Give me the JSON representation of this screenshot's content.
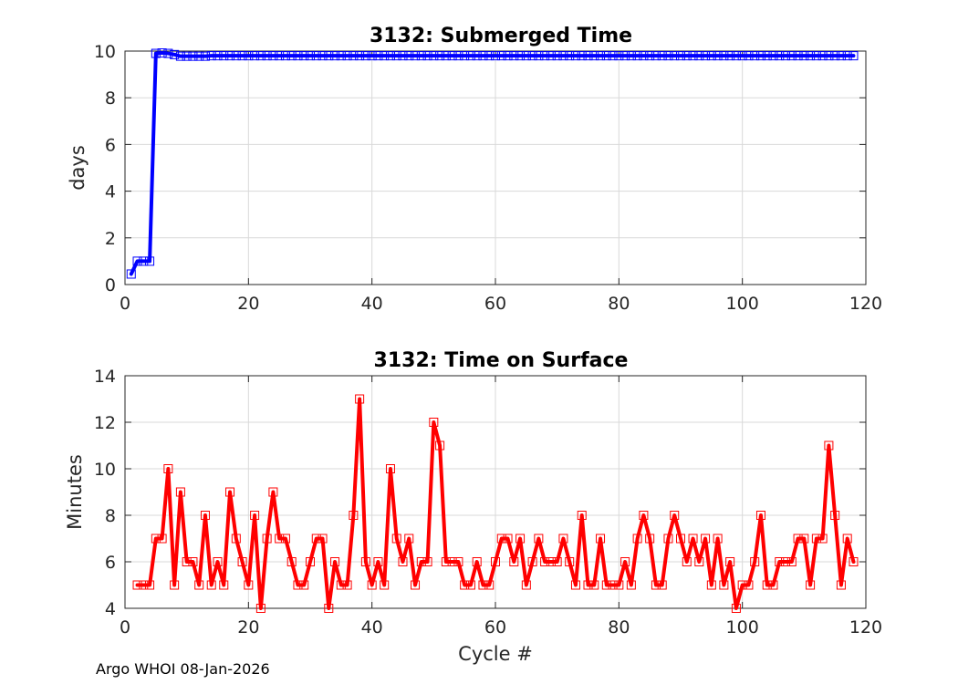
{
  "footer": "Argo WHOI 08-Jan-2026",
  "colors": {
    "top_series": "#0000ff",
    "bottom_series": "#ff0000",
    "grid": "#d9d9d9",
    "axes": "#262626"
  },
  "chart_data": [
    {
      "type": "line",
      "title": "3132: Submerged Time",
      "xlabel": "",
      "ylabel": "days",
      "xlim": [
        0,
        120
      ],
      "ylim": [
        0,
        10
      ],
      "xticks": [
        0,
        20,
        40,
        60,
        80,
        100,
        120
      ],
      "yticks": [
        0,
        2,
        4,
        6,
        8,
        10
      ],
      "grid": true,
      "marker": "square",
      "series": [
        {
          "x": [
            1,
            2,
            3,
            4,
            5,
            6,
            7,
            8,
            9,
            10,
            11,
            12,
            13,
            14,
            15,
            16,
            17,
            18,
            19,
            20,
            21,
            22,
            23,
            24,
            25,
            26,
            27,
            28,
            29,
            30,
            31,
            32,
            33,
            34,
            35,
            36,
            37,
            38,
            39,
            40,
            41,
            42,
            43,
            44,
            45,
            46,
            47,
            48,
            49,
            50,
            51,
            52,
            53,
            54,
            55,
            56,
            57,
            58,
            59,
            60,
            61,
            62,
            63,
            64,
            65,
            66,
            67,
            68,
            69,
            70,
            71,
            72,
            73,
            74,
            75,
            76,
            77,
            78,
            79,
            80,
            81,
            82,
            83,
            84,
            85,
            86,
            87,
            88,
            89,
            90,
            91,
            92,
            93,
            94,
            95,
            96,
            97,
            98,
            99,
            100,
            101,
            102,
            103,
            104,
            105,
            106,
            107,
            108,
            109,
            110,
            111,
            112,
            113,
            114,
            115,
            116,
            117,
            118
          ],
          "values": [
            0.45,
            1,
            1,
            1,
            9.9,
            9.92,
            9.9,
            9.85,
            9.78,
            9.78,
            9.78,
            9.78,
            9.78,
            9.8,
            9.8,
            9.8,
            9.8,
            9.8,
            9.8,
            9.8,
            9.8,
            9.8,
            9.8,
            9.8,
            9.8,
            9.8,
            9.8,
            9.8,
            9.8,
            9.8,
            9.8,
            9.8,
            9.8,
            9.8,
            9.8,
            9.8,
            9.8,
            9.8,
            9.8,
            9.8,
            9.8,
            9.8,
            9.8,
            9.8,
            9.8,
            9.8,
            9.8,
            9.8,
            9.8,
            9.8,
            9.8,
            9.8,
            9.8,
            9.8,
            9.8,
            9.8,
            9.8,
            9.8,
            9.8,
            9.8,
            9.8,
            9.8,
            9.8,
            9.8,
            9.8,
            9.8,
            9.8,
            9.8,
            9.8,
            9.8,
            9.8,
            9.8,
            9.8,
            9.8,
            9.8,
            9.8,
            9.8,
            9.8,
            9.8,
            9.8,
            9.8,
            9.8,
            9.8,
            9.8,
            9.8,
            9.8,
            9.8,
            9.8,
            9.8,
            9.8,
            9.8,
            9.8,
            9.8,
            9.8,
            9.8,
            9.8,
            9.8,
            9.8,
            9.8,
            9.8,
            9.8,
            9.8,
            9.8,
            9.8,
            9.8,
            9.8,
            9.8,
            9.8,
            9.8,
            9.8,
            9.8,
            9.8,
            9.8,
            9.8,
            9.8,
            9.8,
            9.8,
            9.8
          ]
        }
      ]
    },
    {
      "type": "line",
      "title": "3132: Time on Surface",
      "xlabel": "Cycle #",
      "ylabel": "Minutes",
      "xlim": [
        0,
        120
      ],
      "ylim": [
        4,
        14
      ],
      "xticks": [
        0,
        20,
        40,
        60,
        80,
        100,
        120
      ],
      "yticks": [
        4,
        6,
        8,
        10,
        12,
        14
      ],
      "grid": true,
      "marker": "square",
      "series": [
        {
          "x": [
            2,
            3,
            4,
            5,
            6,
            7,
            8,
            9,
            10,
            11,
            12,
            13,
            14,
            15,
            16,
            17,
            18,
            19,
            20,
            21,
            22,
            23,
            24,
            25,
            26,
            27,
            28,
            29,
            30,
            31,
            32,
            33,
            34,
            35,
            36,
            37,
            38,
            39,
            40,
            41,
            42,
            43,
            44,
            45,
            46,
            47,
            48,
            49,
            50,
            51,
            52,
            53,
            54,
            55,
            56,
            57,
            58,
            59,
            60,
            61,
            62,
            63,
            64,
            65,
            66,
            67,
            68,
            69,
            70,
            71,
            72,
            73,
            74,
            75,
            76,
            77,
            78,
            79,
            80,
            81,
            82,
            83,
            84,
            85,
            86,
            87,
            88,
            89,
            90,
            91,
            92,
            93,
            94,
            95,
            96,
            97,
            98,
            99,
            100,
            101,
            102,
            103,
            104,
            105,
            106,
            107,
            108,
            109,
            110,
            111,
            112,
            113,
            114,
            115,
            116,
            117,
            118
          ],
          "values": [
            5,
            5,
            5,
            7,
            7,
            10,
            5,
            9,
            6,
            6,
            5,
            8,
            5,
            6,
            5,
            9,
            7,
            6,
            5,
            8,
            4,
            7,
            9,
            7,
            7,
            6,
            5,
            5,
            6,
            7,
            7,
            4,
            6,
            5,
            5,
            8,
            13,
            6,
            5,
            6,
            5,
            10,
            7,
            6,
            7,
            5,
            6,
            6,
            12,
            11,
            6,
            6,
            6,
            5,
            5,
            6,
            5,
            5,
            6,
            7,
            7,
            6,
            7,
            5,
            6,
            7,
            6,
            6,
            6,
            7,
            6,
            5,
            8,
            5,
            5,
            7,
            5,
            5,
            5,
            6,
            5,
            7,
            8,
            7,
            5,
            5,
            7,
            8,
            7,
            6,
            7,
            6,
            7,
            5,
            7,
            5,
            6,
            4,
            5,
            5,
            6,
            8,
            5,
            5,
            6,
            6,
            6,
            7,
            7,
            5,
            7,
            7,
            11,
            8,
            5,
            7,
            6
          ]
        }
      ]
    }
  ]
}
